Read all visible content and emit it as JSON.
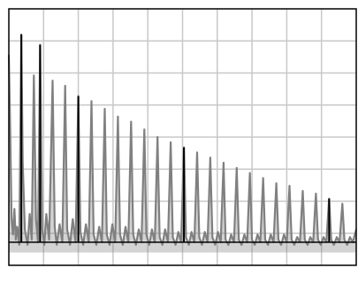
{
  "chart_data": {
    "type": "line",
    "title": "",
    "xlabel": "",
    "ylabel": "",
    "grid": true,
    "legend": "none",
    "xlim": [
      0,
      100
    ],
    "ylim": [
      0,
      100
    ],
    "x_grid_lines": 10,
    "y_grid_lines": 8,
    "colors": {
      "background": "#ffffff",
      "grid": "#c8c8c8",
      "series": "#808080",
      "peaks": "#000000",
      "baseline": "#000000",
      "frame": "#000000"
    },
    "series": [
      {
        "values_note_free": true,
        "points": [
          [
            0.0,
            82
          ],
          [
            0.4,
            52
          ],
          [
            0.8,
            18
          ],
          [
            1.2,
            12
          ],
          [
            1.6,
            22
          ],
          [
            2.0,
            10
          ],
          [
            2.4,
            15
          ],
          [
            3.0,
            8
          ],
          [
            3.6,
            90
          ],
          [
            4.0,
            40
          ],
          [
            4.6,
            14
          ],
          [
            5.4,
            8
          ],
          [
            6.0,
            20
          ],
          [
            6.6,
            10
          ],
          [
            7.2,
            74
          ],
          [
            7.8,
            18
          ],
          [
            8.4,
            9
          ],
          [
            9.0,
            86
          ],
          [
            9.6,
            14
          ],
          [
            10.2,
            8
          ],
          [
            10.8,
            20
          ],
          [
            11.6,
            10
          ],
          [
            12.6,
            72
          ],
          [
            13.2,
            15
          ],
          [
            13.8,
            8
          ],
          [
            14.6,
            16
          ],
          [
            15.4,
            9
          ],
          [
            16.2,
            70
          ],
          [
            16.8,
            14
          ],
          [
            17.6,
            8
          ],
          [
            18.4,
            18
          ],
          [
            19.2,
            9
          ],
          [
            20.0,
            66
          ],
          [
            20.6,
            13
          ],
          [
            21.4,
            8
          ],
          [
            22.2,
            16
          ],
          [
            23.0,
            9
          ],
          [
            23.8,
            64
          ],
          [
            24.4,
            12
          ],
          [
            25.2,
            8
          ],
          [
            26.0,
            15
          ],
          [
            26.8,
            9
          ],
          [
            27.6,
            61
          ],
          [
            28.2,
            12
          ],
          [
            29.0,
            8
          ],
          [
            29.8,
            16
          ],
          [
            30.6,
            9
          ],
          [
            31.4,
            58
          ],
          [
            32.0,
            12
          ],
          [
            32.8,
            8
          ],
          [
            33.6,
            15
          ],
          [
            34.4,
            9
          ],
          [
            35.2,
            56
          ],
          [
            35.8,
            12
          ],
          [
            36.6,
            8
          ],
          [
            37.4,
            14
          ],
          [
            38.2,
            9
          ],
          [
            39.0,
            53
          ],
          [
            39.6,
            12
          ],
          [
            40.4,
            8
          ],
          [
            41.2,
            14
          ],
          [
            42.0,
            9
          ],
          [
            42.8,
            50
          ],
          [
            43.4,
            11
          ],
          [
            44.2,
            8
          ],
          [
            45.0,
            14
          ],
          [
            45.8,
            9
          ],
          [
            46.6,
            48
          ],
          [
            47.2,
            11
          ],
          [
            48.0,
            8
          ],
          [
            48.8,
            13
          ],
          [
            49.6,
            9
          ],
          [
            50.4,
            46
          ],
          [
            51.0,
            11
          ],
          [
            51.8,
            8
          ],
          [
            52.6,
            13
          ],
          [
            53.4,
            9
          ],
          [
            54.2,
            44
          ],
          [
            54.8,
            11
          ],
          [
            55.6,
            8
          ],
          [
            56.4,
            13
          ],
          [
            57.2,
            9
          ],
          [
            58.0,
            42
          ],
          [
            58.6,
            11
          ],
          [
            59.4,
            8
          ],
          [
            60.2,
            13
          ],
          [
            61.0,
            9
          ],
          [
            61.8,
            40
          ],
          [
            62.4,
            10
          ],
          [
            63.2,
            8
          ],
          [
            64.0,
            12
          ],
          [
            64.8,
            9
          ],
          [
            65.6,
            38
          ],
          [
            66.2,
            10
          ],
          [
            67.0,
            8
          ],
          [
            67.8,
            12
          ],
          [
            68.6,
            9
          ],
          [
            69.4,
            36
          ],
          [
            70.0,
            10
          ],
          [
            70.8,
            8
          ],
          [
            71.6,
            12
          ],
          [
            72.4,
            9
          ],
          [
            73.2,
            34
          ],
          [
            73.8,
            10
          ],
          [
            74.6,
            8
          ],
          [
            75.4,
            12
          ],
          [
            76.2,
            9
          ],
          [
            77.0,
            32
          ],
          [
            77.6,
            10
          ],
          [
            78.4,
            8
          ],
          [
            79.2,
            12
          ],
          [
            80.0,
            9
          ],
          [
            80.8,
            31
          ],
          [
            81.4,
            10
          ],
          [
            82.2,
            8
          ],
          [
            83.0,
            11
          ],
          [
            83.8,
            9
          ],
          [
            84.6,
            29
          ],
          [
            85.2,
            10
          ],
          [
            86.0,
            8
          ],
          [
            86.8,
            11
          ],
          [
            87.6,
            9
          ],
          [
            88.4,
            28
          ],
          [
            89.0,
            10
          ],
          [
            89.8,
            8
          ],
          [
            90.6,
            11
          ],
          [
            91.4,
            9
          ],
          [
            92.2,
            26
          ],
          [
            92.8,
            10
          ],
          [
            93.6,
            8
          ],
          [
            94.4,
            11
          ],
          [
            95.2,
            9
          ],
          [
            96.0,
            24
          ],
          [
            96.6,
            10
          ],
          [
            97.4,
            8
          ],
          [
            98.2,
            11
          ],
          [
            99.0,
            9
          ],
          [
            100.0,
            14
          ]
        ]
      }
    ],
    "peaks": [
      {
        "x": 3.6,
        "y": 90
      },
      {
        "x": 9.0,
        "y": 86
      },
      {
        "x": 20.0,
        "y": 66
      },
      {
        "x": 50.4,
        "y": 46
      },
      {
        "x": 92.2,
        "y": 26
      }
    ],
    "baseline_value": 9
  }
}
